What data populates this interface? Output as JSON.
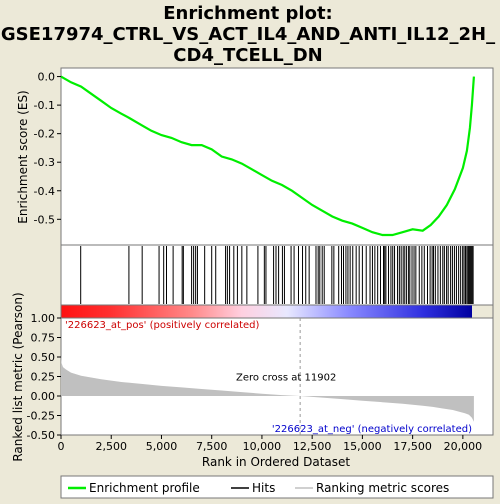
{
  "chart_data": {
    "type": "line",
    "title_lines": [
      "Enrichment plot:",
      "GSE17974_CTRL_VS_ACT_IL4_AND_ANTI_IL12_2H_",
      "CD4_TCELL_DN"
    ],
    "top_panel": {
      "ylabel": "Enrichment score (ES)",
      "ylim": [
        -0.59,
        0.03
      ],
      "yticks": [
        0.0,
        -0.1,
        -0.2,
        -0.3,
        -0.4,
        -0.5
      ],
      "ytick_labels": [
        "0.0",
        "-0.1",
        "-0.2",
        "-0.3",
        "-0.4",
        "-0.5"
      ],
      "series": {
        "name": "Enrichment profile",
        "color": "#00ee00",
        "x": [
          0,
          500,
          1000,
          1500,
          2000,
          2500,
          3000,
          3400,
          4000,
          4500,
          5000,
          5500,
          6000,
          6500,
          7000,
          7500,
          8000,
          8500,
          9000,
          9500,
          10000,
          10500,
          11000,
          11500,
          12000,
          12500,
          13000,
          13500,
          14000,
          14500,
          15000,
          15500,
          16000,
          16500,
          17000,
          17500,
          18000,
          18400,
          18800,
          19200,
          19600,
          20000,
          20200,
          20350,
          20450,
          20550
        ],
        "y": [
          0.0,
          -0.02,
          -0.035,
          -0.06,
          -0.085,
          -0.11,
          -0.13,
          -0.145,
          -0.17,
          -0.19,
          -0.205,
          -0.215,
          -0.23,
          -0.24,
          -0.24,
          -0.255,
          -0.28,
          -0.29,
          -0.305,
          -0.325,
          -0.345,
          -0.365,
          -0.38,
          -0.4,
          -0.425,
          -0.45,
          -0.47,
          -0.49,
          -0.505,
          -0.515,
          -0.53,
          -0.545,
          -0.555,
          -0.555,
          -0.545,
          -0.535,
          -0.54,
          -0.52,
          -0.49,
          -0.45,
          -0.395,
          -0.32,
          -0.26,
          -0.18,
          -0.1,
          0.0
        ]
      }
    },
    "hits": [
      980,
      3380,
      4040,
      4880,
      5110,
      5250,
      5580,
      6030,
      6090,
      6500,
      6600,
      6700,
      6790,
      7150,
      7500,
      7700,
      8190,
      8280,
      8390,
      8600,
      8780,
      9000,
      9250,
      9800,
      10120,
      10200,
      10580,
      10700,
      10830,
      11020,
      11120,
      11450,
      11600,
      11820,
      12020,
      12180,
      12350,
      12690,
      12800,
      12880,
      13000,
      13100,
      13480,
      13580,
      13820,
      13960,
      14060,
      14180,
      14280,
      14390,
      14520,
      14690,
      14840,
      15000,
      15190,
      15380,
      15500,
      15620,
      15760,
      15900,
      16050,
      16110,
      16170,
      16300,
      16420,
      16510,
      16600,
      16750,
      16840,
      16930,
      17030,
      17110,
      17200,
      17300,
      17360,
      17470,
      17570,
      17660,
      17830,
      17960,
      18080,
      18240,
      18370,
      18470,
      18540,
      18630,
      18760,
      18880,
      19000,
      19080,
      19190,
      19270,
      19390,
      19480,
      19580,
      19680,
      19790,
      19890,
      19990,
      20060,
      20130,
      20200,
      20260,
      20310,
      20360,
      20410,
      20460,
      20510
    ],
    "bottom_panel": {
      "ylabel": "Ranked list metric (Pearson)",
      "xlabel": "Rank in Ordered Dataset",
      "xlim": [
        0,
        21500
      ],
      "xticks": [
        0,
        2500,
        5000,
        7500,
        10000,
        12500,
        15000,
        17500,
        20000
      ],
      "xtick_labels": [
        "0",
        "2,500",
        "5,000",
        "7,500",
        "10,000",
        "12,500",
        "15,000",
        "17,500",
        "20,000"
      ],
      "ylim": [
        -0.5,
        1.0
      ],
      "yticks": [
        1.0,
        0.75,
        0.5,
        0.25,
        0.0,
        -0.25,
        -0.5
      ],
      "ytick_labels": [
        "1.00",
        "0.75",
        "0.50",
        "0.25",
        "0.00",
        "-0.25",
        "-0.50"
      ],
      "metric_x": [
        0,
        30,
        100,
        250,
        500,
        1000,
        2000,
        3000,
        4000,
        5000,
        6000,
        7000,
        8000,
        9000,
        10000,
        11000,
        11902,
        13000,
        14000,
        15000,
        16000,
        17000,
        18000,
        18500,
        19000,
        19500,
        19800,
        20100,
        20300,
        20450,
        20550
      ],
      "metric_y": [
        0.52,
        0.42,
        0.37,
        0.34,
        0.3,
        0.26,
        0.215,
        0.18,
        0.155,
        0.13,
        0.11,
        0.09,
        0.07,
        0.05,
        0.03,
        0.012,
        0.0,
        -0.02,
        -0.04,
        -0.06,
        -0.08,
        -0.1,
        -0.125,
        -0.14,
        -0.16,
        -0.18,
        -0.2,
        -0.22,
        -0.24,
        -0.28,
        -0.33
      ],
      "zero_cross_rank": 11902,
      "zero_cross_label": "Zero cross at 11902",
      "pos_label": "'226623_at_pos' (positively correlated)",
      "neg_label": "'226623_at_neg' (negatively correlated)",
      "pos_color": "#cc0000",
      "neg_color": "#0000cc"
    },
    "legend": [
      {
        "label": "Enrichment profile",
        "color": "#00ee00"
      },
      {
        "label": "Hits",
        "color": "#000000"
      },
      {
        "label": "Ranking metric scores",
        "color": "#c0c0c0"
      }
    ]
  }
}
